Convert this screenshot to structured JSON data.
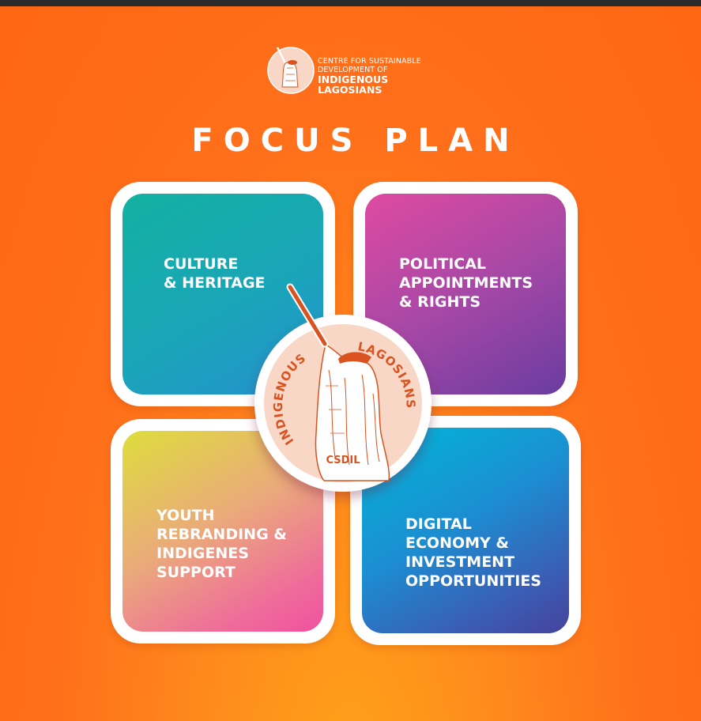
{
  "brand": {
    "line1": "CENTRE FOR SUSTAINABLE",
    "line2": "DEVELOPMENT OF",
    "line3": "INDIGENOUS",
    "line4": "LAGOSIANS"
  },
  "title": "FOCUS PLAN",
  "cards": {
    "culture": "CULTURE\n& HERITAGE",
    "political": "POLITICAL\nAPPOINTMENTS\n& RIGHTS",
    "youth": "YOUTH\nREBRANDING &\nINDIGENES\nSUPPORT",
    "digital": "DIGITAL\nECONOMY &\nINVESTMENT\nOPPORTUNITIES"
  },
  "emblem": {
    "text_left": "INDIGENOUS",
    "text_right": "LAGOSIANS",
    "code": "CSDIL"
  },
  "colors": {
    "background": "#ff6f1a",
    "emblem_fill": "#f9d7c6",
    "emblem_ink": "#d8531f"
  }
}
